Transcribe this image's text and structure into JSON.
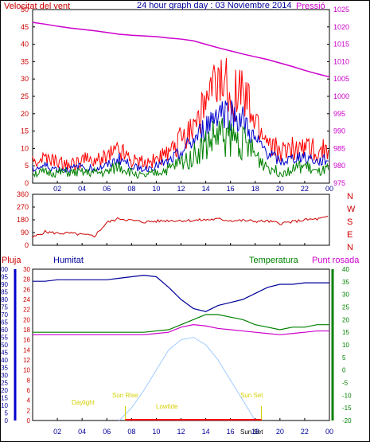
{
  "title": "24 hour graph day : 03 Noviembre 2014",
  "colors": {
    "wind": "#ff0000",
    "wind_avg": "#0000cc",
    "wind_low": "#008000",
    "pressure": "#cc00cc",
    "direction": "#cc0000",
    "humidity": "#000099",
    "temperature": "#008000",
    "dewpoint": "#cc00cc",
    "rain": "#ff0000",
    "sun": "#9ecbff",
    "annot": "#d4cf00",
    "left_axis": "#cc0000",
    "rain_axis": "#0000cc",
    "temp_axis": "#008000"
  },
  "x_tick_labels": [
    "02",
    "04",
    "06",
    "08",
    "10",
    "12",
    "14",
    "16",
    "18",
    "20",
    "22",
    "00"
  ],
  "chart_data": [
    {
      "type": "line",
      "name": "wind-pressure",
      "labels": {
        "left": "Velocitat del vent",
        "right": "Pressió"
      },
      "x": [
        0,
        1,
        2,
        3,
        4,
        5,
        6,
        7,
        8,
        9,
        10,
        11,
        12,
        13,
        14,
        15,
        16,
        17,
        18,
        19,
        20,
        21,
        22,
        23,
        24
      ],
      "ylim_left": [
        0,
        50
      ],
      "ylim_right": [
        975,
        1025
      ],
      "left_ticks": [
        "0",
        "5",
        "10",
        "15",
        "20",
        "25",
        "30",
        "35",
        "40",
        "45",
        "50"
      ],
      "right_ticks": [
        "975",
        "980",
        "985",
        "990",
        "995",
        "1000",
        "1005",
        "1010",
        "1015",
        "1020",
        "1025"
      ],
      "series": [
        {
          "name": "gust",
          "values": [
            6,
            7,
            6,
            5,
            7,
            6,
            8,
            10,
            7,
            6,
            7,
            8,
            13,
            17,
            22,
            28,
            27,
            25,
            17,
            12,
            9,
            10,
            11,
            9,
            10
          ]
        },
        {
          "name": "average",
          "values": [
            4,
            5,
            4,
            4,
            5,
            4,
            5,
            7,
            5,
            4,
            5,
            6,
            9,
            12,
            16,
            21,
            20,
            18,
            12,
            9,
            6,
            7,
            8,
            6,
            7
          ]
        },
        {
          "name": "low",
          "values": [
            3,
            3,
            3,
            3,
            3,
            3,
            3,
            5,
            3,
            2,
            3,
            4,
            6,
            8,
            11,
            14,
            13,
            12,
            8,
            5,
            3,
            4,
            5,
            3,
            4
          ]
        },
        {
          "name": "pressure",
          "values": [
            1021.3,
            1020.8,
            1020.2,
            1019.7,
            1019.3,
            1018.9,
            1018.4,
            1017.9,
            1017.6,
            1017.4,
            1017.2,
            1016.8,
            1016.5,
            1016.0,
            1015.0,
            1014.0,
            1013.1,
            1012.2,
            1011.4,
            1010.6,
            1009.6,
            1008.6,
            1007.5,
            1006.5,
            1005.6
          ]
        }
      ]
    },
    {
      "type": "line",
      "name": "wind-direction",
      "labels": {
        "right": [
          "N",
          "W",
          "S",
          "E",
          "N"
        ]
      },
      "x": [
        0,
        1,
        2,
        3,
        4,
        5,
        6,
        7,
        8,
        9,
        10,
        11,
        12,
        13,
        14,
        15,
        16,
        17,
        18,
        19,
        20,
        21,
        22,
        23,
        24
      ],
      "ylim": [
        0,
        360
      ],
      "left_ticks": [
        "0",
        "90",
        "180",
        "270",
        "360"
      ],
      "series": [
        {
          "name": "direction",
          "values": [
            55,
            95,
            85,
            85,
            75,
            65,
            160,
            190,
            175,
            165,
            170,
            175,
            175,
            175,
            180,
            185,
            175,
            175,
            170,
            170,
            155,
            165,
            180,
            185,
            200
          ]
        }
      ]
    },
    {
      "type": "line",
      "name": "humidity-temperature",
      "labels": {
        "rain": "Pluja",
        "humidity": "Humitat",
        "temperature": "Temperatura",
        "dewpoint": "Punt rosada"
      },
      "annotations": {
        "daylight": "Daylight",
        "sunrise": "Sun Rise",
        "lowtide": "Lowtide",
        "sunset": "Sun Set",
        "sunset_small": "Sun Set"
      },
      "x": [
        0,
        1,
        2,
        3,
        4,
        5,
        6,
        7,
        8,
        9,
        10,
        11,
        12,
        13,
        14,
        15,
        16,
        17,
        18,
        19,
        20,
        21,
        22,
        23,
        24
      ],
      "left_ticks": [
        "0",
        "5",
        "10",
        "15",
        "20",
        "25",
        "30",
        "35",
        "40",
        "45",
        "50",
        "55",
        "60",
        "65",
        "70",
        "75",
        "80",
        "85",
        "90",
        "95",
        "100"
      ],
      "rain_ticks": [
        "0",
        "2",
        "4",
        "6",
        "8",
        "10",
        "12",
        "14",
        "16",
        "18",
        "20",
        "22",
        "24",
        "26",
        "28",
        "30"
      ],
      "temp_ticks": [
        "-20",
        "-15",
        "-10",
        "-5",
        "0",
        "5",
        "10",
        "15",
        "20",
        "25",
        "30",
        "35",
        "40"
      ],
      "ylim_humidity": [
        0,
        100
      ],
      "ylim_temperature": [
        -20,
        40
      ],
      "series": [
        {
          "name": "humidity",
          "values": [
            92,
            92,
            93,
            93,
            93,
            93,
            93,
            94,
            95,
            96,
            95,
            88,
            80,
            74,
            72,
            76,
            78,
            80,
            84,
            88,
            90,
            90,
            91,
            91,
            91
          ]
        },
        {
          "name": "temperature",
          "values": [
            15,
            15,
            15,
            15,
            15,
            15,
            15,
            15,
            15,
            15,
            15.5,
            16,
            18,
            20,
            22,
            22,
            21,
            20,
            18,
            17,
            16,
            17,
            17,
            18,
            18
          ]
        },
        {
          "name": "dewpoint",
          "values": [
            14,
            14,
            14,
            14,
            14,
            14,
            14,
            14,
            14,
            14,
            14.5,
            15,
            17,
            18,
            17.5,
            16.5,
            16,
            15.5,
            15,
            14.5,
            14,
            14.5,
            15,
            15.5,
            15.5
          ]
        },
        {
          "name": "rain",
          "values": [
            0,
            0,
            0,
            0,
            0,
            0,
            0,
            0,
            0,
            0,
            0,
            0,
            0,
            0,
            0,
            0,
            0,
            0,
            0,
            0,
            0,
            0,
            0,
            0,
            0
          ]
        },
        {
          "name": "sun",
          "values": [
            null,
            null,
            null,
            null,
            null,
            null,
            null,
            0,
            5,
            12,
            20,
            28,
            32,
            33,
            30,
            24,
            16,
            8,
            0,
            null,
            null,
            null,
            null,
            null,
            null
          ]
        }
      ]
    }
  ]
}
